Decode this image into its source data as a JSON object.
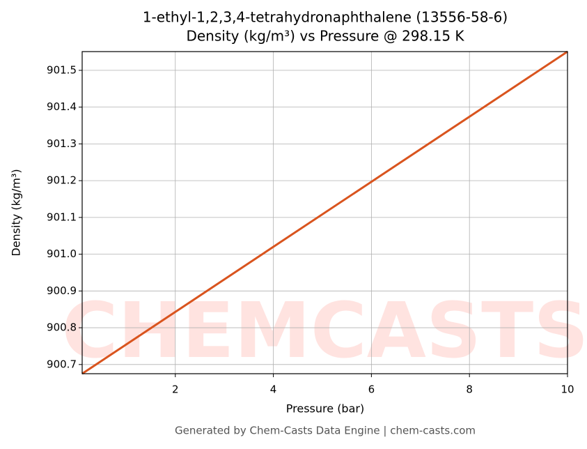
{
  "chart_data": {
    "type": "line",
    "title": "1-ethyl-1,2,3,4-tetrahydronaphthalene (13556-58-6)",
    "subtitle": "Density (kg/m³) vs Pressure @ 298.15 K",
    "x_label": "Pressure (bar)",
    "y_label": "Density (kg/m³)",
    "footer": "Generated by Chem-Casts Data Engine | chem-casts.com",
    "watermark": "CHEMCASTS",
    "x": [
      0.1,
      2,
      4,
      6,
      8,
      10
    ],
    "series": [
      {
        "name": "Density",
        "color": "#d9541e",
        "values": [
          900.675,
          900.843,
          901.02,
          901.197,
          901.374,
          901.551
        ]
      }
    ],
    "xlim": [
      0.1,
      10
    ],
    "xticks": [
      2,
      4,
      6,
      8,
      10
    ],
    "ylim": [
      900.675,
      901.551
    ],
    "yticks": [
      900.7,
      900.8,
      900.9,
      {
        "value": 901,
        "label": "901.0"
      },
      901.1,
      901.2,
      901.3,
      901.4,
      901.5
    ],
    "grid": true
  }
}
